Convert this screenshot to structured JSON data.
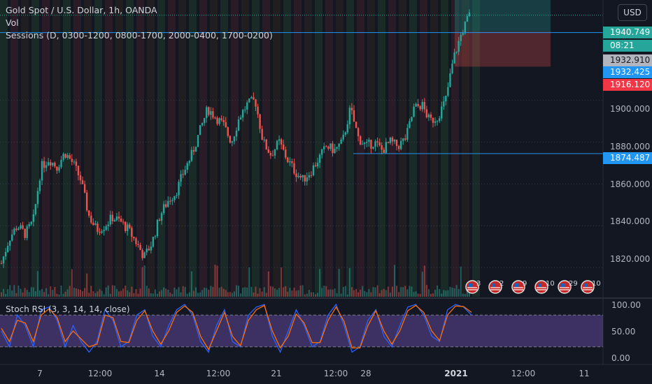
{
  "header": {
    "symbol_line": "Gold Spot / U.S. Dollar, 1h, OANDA",
    "vol_line": "Vol",
    "sessions_line": "Sessions (D, 0300-1200, 0800-1700, 2000-0400, 1700-0200)",
    "currency_button": "USD"
  },
  "colors": {
    "background": "#131722",
    "up": "#26a69a",
    "down": "#ef5350",
    "line_blue": "#2196f3",
    "rsi_fill": "#7e57c2",
    "k_line": "#2962ff",
    "d_line": "#ff6d00"
  },
  "price_tags": {
    "last": "1940.749",
    "countdown": "08:21",
    "grey": "1932.910",
    "blue_a": "1932.425",
    "red": "1916.120",
    "blue_b": "1874.487"
  },
  "events": [
    {
      "icon": "us-flag-icon",
      "count": "3"
    },
    {
      "icon": "us-flag-icon",
      "count": "2"
    },
    {
      "icon": "us-flag-icon",
      "count": "9"
    },
    {
      "icon": "us-flag-icon",
      "count": "10"
    },
    {
      "icon": "us-flag-icon",
      "count": "29"
    },
    {
      "icon": "us-flag-icon",
      "count": "10"
    }
  ],
  "rsi_pane": {
    "title": "Stoch RSI (3, 3, 14, 14, close)",
    "ticks": [
      "100.00",
      "50.00",
      "0.00"
    ]
  },
  "chart_data": [
    {
      "type": "candlestick",
      "title": "Gold Spot / U.S. Dollar, 1h, OANDA",
      "y_ticks": [
        1900,
        1880,
        1860,
        1840,
        1820
      ],
      "y_tick_labels": [
        "1900.000",
        "1880.000",
        "1860.000",
        "1840.000",
        "1820.000"
      ],
      "ylim": [
        1806,
        1948
      ],
      "x_tick_labels": [
        "7",
        "12:00",
        "14",
        "12:00",
        "21",
        "12:00",
        "28",
        "2021",
        "12:00",
        "11"
      ],
      "close_path": [
        1822,
        1834,
        1840,
        1836,
        1842,
        1868,
        1872,
        1868,
        1875,
        1870,
        1862,
        1845,
        1838,
        1840,
        1844,
        1842,
        1838,
        1832,
        1825,
        1832,
        1845,
        1852,
        1856,
        1866,
        1874,
        1885,
        1896,
        1892,
        1888,
        1880,
        1892,
        1898,
        1900,
        1880,
        1874,
        1880,
        1872,
        1866,
        1862,
        1866,
        1872,
        1878,
        1876,
        1880,
        1896,
        1882,
        1878,
        1880,
        1876,
        1880,
        1878,
        1882,
        1896,
        1898,
        1890,
        1892,
        1900,
        1920,
        1932,
        1940.749
      ],
      "horizontal_levels": [
        1940.749,
        1932.425,
        1874.487
      ],
      "position_box": {
        "entry": 1932.91,
        "stop": 1916.12
      }
    },
    {
      "type": "line",
      "title": "Stoch RSI (3, 3, 14, 14, close)",
      "ylim": [
        0,
        100
      ],
      "bands": [
        80,
        20
      ],
      "y_tick_labels": [
        "100.00",
        "50.00",
        "0.00"
      ],
      "series": [
        {
          "name": "",
          "values": [
            50,
            20,
            80,
            60,
            20,
            90,
            95,
            70,
            20,
            60,
            30,
            10,
            30,
            90,
            70,
            20,
            30,
            80,
            90,
            40,
            20,
            60,
            90,
            100,
            80,
            30,
            10,
            60,
            90,
            30,
            20,
            80,
            95,
            100,
            40,
            10,
            50,
            90,
            60,
            20,
            30,
            80,
            100,
            60,
            10,
            20,
            70,
            90,
            40,
            20,
            60,
            95,
            100,
            80,
            40,
            30,
            90,
            100,
            95,
            80
          ]
        },
        {
          "name": "",
          "values": [
            55,
            30,
            70,
            65,
            30,
            80,
            92,
            75,
            30,
            50,
            35,
            20,
            25,
            80,
            75,
            30,
            28,
            70,
            88,
            50,
            25,
            50,
            85,
            97,
            85,
            40,
            15,
            50,
            85,
            40,
            22,
            70,
            90,
            98,
            50,
            18,
            40,
            82,
            65,
            28,
            28,
            70,
            95,
            68,
            18,
            18,
            60,
            88,
            50,
            25,
            50,
            88,
            98,
            85,
            50,
            32,
            80,
            97,
            96,
            85
          ]
        }
      ]
    }
  ]
}
